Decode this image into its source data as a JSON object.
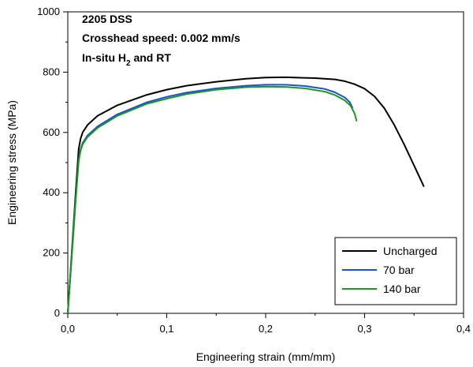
{
  "chart_data": {
    "type": "line",
    "xlabel": "Engineering strain (mm/mm)",
    "ylabel": "Engineering stress (MPa)",
    "xlim": [
      0,
      0.4
    ],
    "ylim": [
      0,
      1000
    ],
    "x_ticks": [
      0,
      0.1,
      0.2,
      0.3,
      0.4
    ],
    "x_tick_labels": [
      "0,0",
      "0,1",
      "0,2",
      "0,3",
      "0,4"
    ],
    "y_ticks": [
      0,
      200,
      400,
      600,
      800,
      1000
    ],
    "y_tick_labels": [
      "0",
      "200",
      "400",
      "600",
      "800",
      "1000"
    ],
    "grid": false,
    "legend_position": "bottom-right",
    "annotation": {
      "line1": "2205 DSS",
      "line2": "Crosshead speed: 0.002 mm/s",
      "line3_prefix": "In-situ H",
      "line3_sub": "2",
      "line3_suffix": " and RT"
    },
    "series": [
      {
        "name": "Uncharged",
        "color": "#000000",
        "x": [
          0,
          0.008,
          0.011,
          0.013,
          0.015,
          0.02,
          0.03,
          0.05,
          0.08,
          0.1,
          0.12,
          0.15,
          0.18,
          0.2,
          0.22,
          0.25,
          0.27,
          0.28,
          0.29,
          0.3,
          0.31,
          0.32,
          0.33,
          0.34,
          0.35,
          0.36
        ],
        "y": [
          0,
          400,
          545,
          580,
          600,
          625,
          655,
          690,
          725,
          742,
          755,
          768,
          778,
          782,
          783,
          780,
          776,
          770,
          760,
          745,
          720,
          680,
          625,
          560,
          490,
          420
        ]
      },
      {
        "name": "70 bar",
        "color": "#1f4fd8",
        "x": [
          0,
          0.008,
          0.011,
          0.013,
          0.015,
          0.02,
          0.03,
          0.05,
          0.08,
          0.1,
          0.12,
          0.15,
          0.18,
          0.2,
          0.22,
          0.24,
          0.26,
          0.27,
          0.28,
          0.285,
          0.288
        ],
        "y": [
          0,
          380,
          510,
          545,
          565,
          590,
          620,
          660,
          700,
          718,
          732,
          746,
          755,
          758,
          758,
          754,
          744,
          733,
          716,
          700,
          680
        ]
      },
      {
        "name": "140 bar",
        "color": "#1a9a1a",
        "x": [
          0,
          0.008,
          0.011,
          0.013,
          0.015,
          0.02,
          0.03,
          0.05,
          0.08,
          0.1,
          0.12,
          0.15,
          0.18,
          0.2,
          0.22,
          0.24,
          0.26,
          0.27,
          0.28,
          0.286,
          0.29,
          0.292
        ],
        "y": [
          0,
          375,
          505,
          540,
          560,
          585,
          615,
          655,
          695,
          712,
          727,
          742,
          750,
          752,
          751,
          746,
          735,
          724,
          706,
          688,
          662,
          637
        ]
      }
    ]
  }
}
